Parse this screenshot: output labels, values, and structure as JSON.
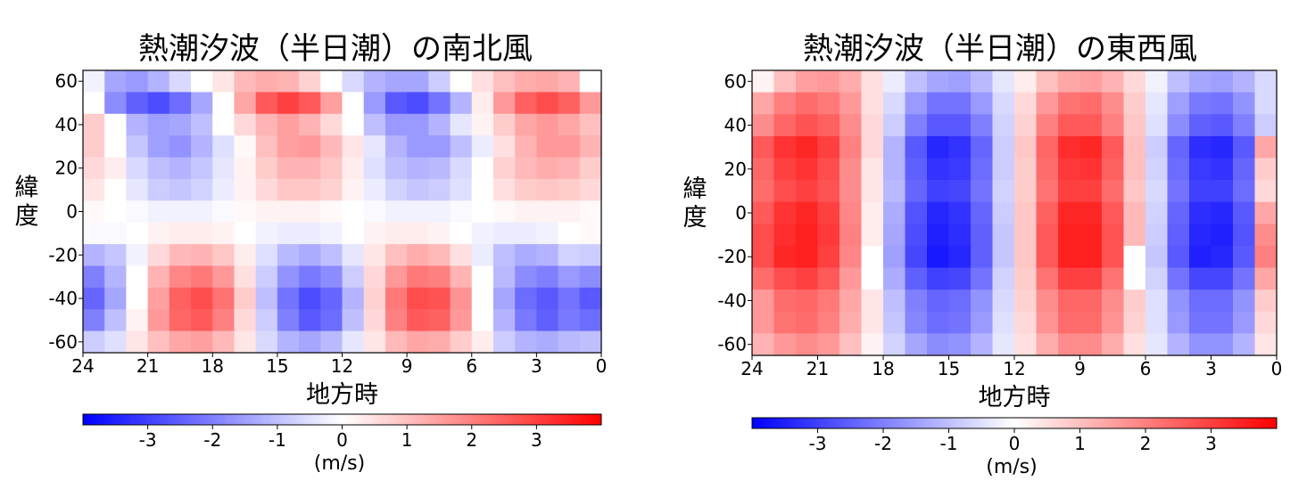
{
  "chart_data": [
    {
      "type": "heatmap",
      "title": "熱潮汐波（半日潮）の南北風",
      "xlabel": "地方時",
      "ylabel": "緯度",
      "x_ticks": [
        "24",
        "21",
        "18",
        "15",
        "12",
        "9",
        "6",
        "3",
        "0"
      ],
      "y_ticks": [
        "60",
        "40",
        "20",
        "0",
        "-20",
        "-40",
        "-60"
      ],
      "xlim": [
        24,
        0
      ],
      "ylim": [
        -65,
        65
      ],
      "colormap": "bwr",
      "vmin": -4,
      "vmax": 4,
      "colorbar_ticks": [
        "-3",
        "-2",
        "-1",
        "0",
        "1",
        "2",
        "3"
      ],
      "colorbar_label": "(m/s)",
      "cols": 24,
      "rows": 13,
      "values": [
        [
          -0.2,
          -1.4,
          -1.6,
          -1.2,
          -0.6,
          0.0,
          0.4,
          1.1,
          1.3,
          1.2,
          0.7,
          0.0,
          -0.6,
          -1.2,
          -1.4,
          -1.4,
          -0.8,
          0.0,
          0.5,
          1.0,
          1.3,
          1.4,
          1.2,
          0.0
        ],
        [
          0.0,
          -1.8,
          -2.5,
          -2.8,
          -2.3,
          -1.4,
          0.0,
          1.4,
          2.6,
          3.0,
          2.6,
          1.5,
          0.0,
          -1.6,
          -2.6,
          -2.8,
          -2.2,
          -1.2,
          0.3,
          1.6,
          2.5,
          2.8,
          2.5,
          1.6
        ],
        [
          0.8,
          0.0,
          -1.2,
          -1.5,
          -1.4,
          -1.0,
          0.0,
          0.6,
          1.2,
          1.5,
          1.2,
          0.6,
          0.0,
          -1.0,
          -1.6,
          -1.6,
          -1.2,
          -0.4,
          0.2,
          0.8,
          1.4,
          1.6,
          1.4,
          1.0
        ],
        [
          0.8,
          0.0,
          -0.9,
          -1.5,
          -1.7,
          -1.2,
          -0.5,
          0.1,
          1.0,
          1.5,
          1.6,
          1.1,
          0.4,
          -0.4,
          -1.2,
          -1.6,
          -1.6,
          -1.0,
          -0.3,
          0.5,
          1.2,
          1.6,
          1.6,
          1.2
        ],
        [
          0.6,
          0.3,
          -0.6,
          -1.0,
          -1.2,
          -0.9,
          -0.4,
          0.2,
          0.8,
          1.2,
          1.2,
          0.9,
          0.3,
          -0.5,
          -1.0,
          -1.2,
          -1.1,
          -0.6,
          0.0,
          0.7,
          1.1,
          1.3,
          1.2,
          0.8
        ],
        [
          0.4,
          0.0,
          -0.4,
          -0.8,
          -0.9,
          -0.7,
          -0.3,
          0.2,
          0.6,
          0.9,
          0.9,
          0.7,
          0.2,
          -0.3,
          -0.7,
          -0.9,
          -0.8,
          -0.5,
          0.0,
          0.5,
          0.8,
          0.9,
          0.8,
          0.6
        ],
        [
          0.1,
          0.0,
          -0.1,
          -0.2,
          -0.2,
          -0.2,
          -0.1,
          0.1,
          0.2,
          0.2,
          0.2,
          0.1,
          0.0,
          -0.1,
          -0.2,
          -0.2,
          -0.2,
          -0.1,
          0.0,
          0.1,
          0.2,
          0.2,
          0.2,
          0.1
        ],
        [
          -0.1,
          -0.1,
          0.0,
          0.2,
          0.3,
          0.3,
          0.2,
          0.0,
          -0.2,
          -0.3,
          -0.3,
          -0.2,
          0.0,
          0.2,
          0.3,
          0.3,
          0.2,
          0.0,
          -0.2,
          -0.3,
          -0.3,
          -0.2,
          0.0,
          0.1
        ],
        [
          -1.2,
          -0.9,
          -0.2,
          0.6,
          1.1,
          1.2,
          0.9,
          0.3,
          -0.5,
          -1.1,
          -1.3,
          -1.0,
          -0.4,
          0.4,
          1.0,
          1.3,
          1.1,
          0.5,
          -0.3,
          -1.0,
          -1.3,
          -1.2,
          -0.7,
          -0.8
        ],
        [
          -2.0,
          -1.2,
          0.0,
          1.2,
          1.9,
          2.1,
          1.6,
          0.5,
          -0.8,
          -1.7,
          -2.1,
          -1.8,
          -0.8,
          0.6,
          1.6,
          2.1,
          2.0,
          1.2,
          0.0,
          -1.1,
          -1.8,
          -2.0,
          -1.6,
          -1.8
        ],
        [
          -2.4,
          -1.4,
          0.0,
          1.5,
          2.5,
          2.8,
          2.2,
          0.8,
          -1.0,
          -2.2,
          -2.8,
          -2.4,
          -1.2,
          0.7,
          2.1,
          2.8,
          2.7,
          1.7,
          0.0,
          -1.4,
          -2.3,
          -2.6,
          -2.2,
          -2.6
        ],
        [
          -2.0,
          -1.0,
          0.2,
          1.6,
          2.4,
          2.6,
          2.0,
          0.6,
          -0.8,
          -2.0,
          -2.6,
          -2.3,
          -1.0,
          0.6,
          2.0,
          2.6,
          2.5,
          1.6,
          0.0,
          -1.2,
          -2.1,
          -2.5,
          -2.1,
          -2.3
        ],
        [
          -0.8,
          -0.5,
          0.4,
          1.0,
          1.4,
          1.5,
          1.1,
          0.4,
          -0.6,
          -1.2,
          -1.4,
          -1.1,
          -0.4,
          0.4,
          1.1,
          1.4,
          1.3,
          0.8,
          0.3,
          -0.8,
          -1.2,
          -1.3,
          -1.1,
          -1.0
        ]
      ]
    },
    {
      "type": "heatmap",
      "title": "熱潮汐波（半日潮）の東西風",
      "xlabel": "地方時",
      "ylabel": "緯度",
      "x_ticks": [
        "24",
        "21",
        "18",
        "15",
        "12",
        "9",
        "6",
        "3",
        "0"
      ],
      "y_ticks": [
        "60",
        "40",
        "20",
        "0",
        "-20",
        "-40",
        "-60"
      ],
      "xlim": [
        24,
        0
      ],
      "ylim": [
        -65,
        65
      ],
      "colormap": "bwr",
      "vmin": -4,
      "vmax": 4,
      "colorbar_ticks": [
        "-3",
        "-2",
        "-1",
        "0",
        "1",
        "2",
        "3"
      ],
      "colorbar_label": "(m/s)",
      "cols": 24,
      "rows": 13,
      "values": [
        [
          0.2,
          1.0,
          1.5,
          1.6,
          1.3,
          0.5,
          -0.3,
          -1.0,
          -1.4,
          -1.5,
          -1.1,
          -0.4,
          0.3,
          1.0,
          1.4,
          1.5,
          1.2,
          0.6,
          -0.2,
          -1.0,
          -1.4,
          -1.5,
          -1.2,
          -0.6
        ],
        [
          1.4,
          2.0,
          2.3,
          2.1,
          1.6,
          0.5,
          -0.6,
          -1.6,
          -2.2,
          -2.2,
          -1.6,
          -0.6,
          0.6,
          1.6,
          2.2,
          2.3,
          1.8,
          0.8,
          -0.4,
          -1.5,
          -2.1,
          -2.2,
          -1.7,
          -0.6
        ],
        [
          1.8,
          2.4,
          2.7,
          2.5,
          1.8,
          0.6,
          -0.8,
          -2.0,
          -2.6,
          -2.6,
          -2.0,
          -0.7,
          0.7,
          2.0,
          2.6,
          2.6,
          2.0,
          0.9,
          -0.5,
          -1.8,
          -2.5,
          -2.6,
          -2.0,
          -0.8
        ],
        [
          2.6,
          3.2,
          3.4,
          3.0,
          2.0,
          0.6,
          -1.2,
          -2.6,
          -3.4,
          -3.2,
          -2.4,
          -0.8,
          0.9,
          2.4,
          3.3,
          3.4,
          2.6,
          1.0,
          -0.8,
          -2.4,
          -3.3,
          -3.4,
          -2.6,
          1.4
        ],
        [
          2.4,
          3.0,
          3.2,
          2.8,
          1.8,
          0.4,
          -1.2,
          -2.5,
          -3.2,
          -3.1,
          -2.3,
          -0.8,
          0.8,
          2.3,
          3.1,
          3.2,
          2.5,
          1.0,
          -0.7,
          -2.3,
          -3.1,
          -3.2,
          -2.4,
          0.8
        ],
        [
          2.3,
          2.8,
          3.0,
          2.7,
          1.8,
          0.4,
          -1.1,
          -2.4,
          -3.0,
          -2.9,
          -2.2,
          -0.7,
          0.8,
          2.2,
          3.0,
          3.0,
          2.3,
          0.9,
          -0.6,
          -2.2,
          -3.0,
          -3.0,
          -2.3,
          0.6
        ],
        [
          2.6,
          3.2,
          3.4,
          3.0,
          1.9,
          0.3,
          -1.3,
          -2.7,
          -3.4,
          -3.2,
          -2.4,
          -0.8,
          0.9,
          2.5,
          3.4,
          3.4,
          2.6,
          1.1,
          -0.7,
          -2.4,
          -3.3,
          -3.4,
          -2.6,
          1.4
        ],
        [
          2.8,
          3.3,
          3.5,
          3.1,
          2.0,
          0.3,
          -1.4,
          -2.8,
          -3.5,
          -3.3,
          -2.5,
          -0.9,
          0.9,
          2.6,
          3.5,
          3.5,
          2.7,
          1.1,
          -0.8,
          -2.5,
          -3.4,
          -3.5,
          -2.7,
          1.8
        ],
        [
          2.8,
          3.4,
          3.5,
          3.0,
          1.9,
          0.0,
          -1.5,
          -2.9,
          -3.6,
          -3.4,
          -2.5,
          -0.9,
          0.9,
          2.6,
          3.5,
          3.5,
          2.7,
          0.0,
          -0.9,
          -2.6,
          -3.5,
          -3.4,
          -2.6,
          2.0
        ],
        [
          2.3,
          2.8,
          3.0,
          2.6,
          1.6,
          0.0,
          -1.3,
          -2.5,
          -3.0,
          -2.9,
          -2.2,
          -0.7,
          0.8,
          2.2,
          3.0,
          3.0,
          2.2,
          0.0,
          -0.7,
          -2.2,
          -2.9,
          -2.9,
          -2.2,
          1.4
        ],
        [
          1.6,
          2.3,
          2.4,
          2.1,
          1.4,
          0.4,
          -1.0,
          -2.0,
          -2.4,
          -2.3,
          -1.7,
          -0.6,
          0.7,
          1.8,
          2.4,
          2.4,
          1.8,
          0.8,
          -0.5,
          -1.7,
          -2.3,
          -2.3,
          -1.7,
          0.8
        ],
        [
          1.6,
          2.2,
          2.3,
          2.0,
          1.3,
          0.4,
          -0.9,
          -1.9,
          -2.3,
          -2.2,
          -1.6,
          -0.5,
          0.6,
          1.7,
          2.3,
          2.3,
          1.7,
          0.7,
          -0.5,
          -1.6,
          -2.2,
          -2.2,
          -1.6,
          0.6
        ],
        [
          1.2,
          1.6,
          1.8,
          1.6,
          1.0,
          0.2,
          -0.7,
          -1.4,
          -1.8,
          -1.7,
          -1.2,
          -0.4,
          0.5,
          1.3,
          1.8,
          1.8,
          1.3,
          0.5,
          -0.4,
          -1.2,
          -1.7,
          -1.7,
          -1.2,
          0.4
        ]
      ]
    }
  ]
}
